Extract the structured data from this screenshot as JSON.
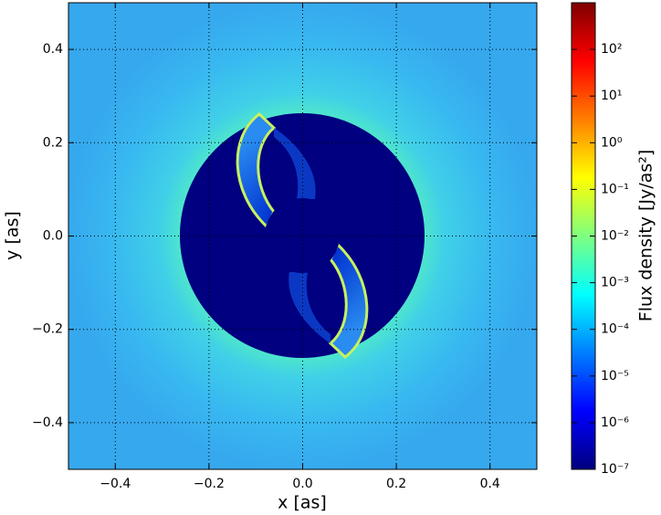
{
  "chart_data": {
    "type": "heatmap",
    "xlabel": "x [as]",
    "ylabel": "y [as]",
    "xlim": [
      -0.5,
      0.5
    ],
    "ylim": [
      -0.5,
      0.5
    ],
    "xticks": [
      {
        "value": -0.4,
        "label": "−0.4"
      },
      {
        "value": -0.2,
        "label": "−0.2"
      },
      {
        "value": 0,
        "label": "0.0"
      },
      0.2,
      0.4
    ],
    "yticks": [
      {
        "value": -0.4,
        "label": "−0.4"
      },
      {
        "value": -0.2,
        "label": "−0.2"
      },
      {
        "value": 0,
        "label": "0.0"
      },
      0.2,
      0.4
    ],
    "grid": true,
    "colorbar": {
      "label": "Flux density [Jy/as²]",
      "scale": "log",
      "colormap": "jet",
      "clim": [
        1e-07,
        1000
      ],
      "ticks": [
        {
          "value": 1e-07,
          "label": "10⁻⁷"
        },
        {
          "value": 1e-06,
          "label": "10⁻⁶"
        },
        {
          "value": 1e-05,
          "label": "10⁻⁵"
        },
        {
          "value": 0.0001,
          "label": "10⁻⁴"
        },
        {
          "value": 0.001,
          "label": "10⁻³"
        },
        {
          "value": 0.01,
          "label": "10⁻²"
        },
        {
          "value": 0.1,
          "label": "10⁻¹"
        },
        {
          "value": 1,
          "label": "10⁰"
        },
        {
          "value": 10,
          "label": "10¹"
        },
        {
          "value": 100,
          "label": "10²"
        }
      ]
    }
  }
}
